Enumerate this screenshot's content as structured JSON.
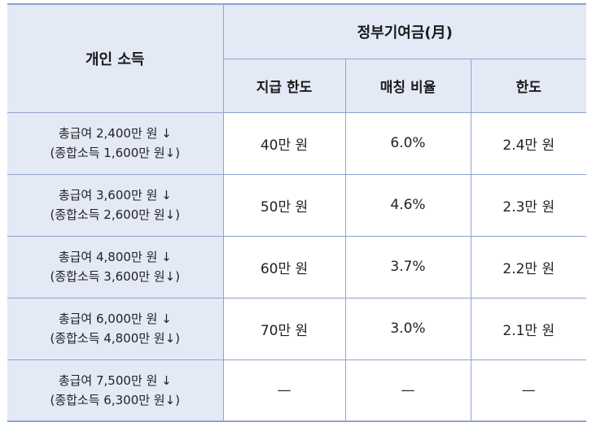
{
  "header": {
    "personal_income": "개인 소득",
    "gov_contribution": "정부기여금(月)",
    "sub": {
      "limit": "지급 한도",
      "matching": "매칭 비율",
      "cap": "한도"
    }
  },
  "rows": [
    {
      "line1": "총급여 2,400만 원 ↓",
      "line2": "(종합소득 1,600만 원↓)",
      "limit": "40만 원",
      "matching": "6.0%",
      "cap": "2.4만 원"
    },
    {
      "line1": "총급여 3,600만 원 ↓",
      "line2": "(종합소득 2,600만 원↓)",
      "limit": "50만 원",
      "matching": "4.6%",
      "cap": "2.3만 원"
    },
    {
      "line1": "총급여 4,800만 원 ↓",
      "line2": "(종합소득 3,600만 원↓)",
      "limit": "60만 원",
      "matching": "3.7%",
      "cap": "2.2만 원"
    },
    {
      "line1": "총급여 6,000만 원 ↓",
      "line2": "(종합소득 4,800만 원↓)",
      "limit": "70만 원",
      "matching": "3.0%",
      "cap": "2.1만 원"
    },
    {
      "line1": "총급여 7,500만 원 ↓",
      "line2": "(종합소득 6,300만 원↓)",
      "limit": "—",
      "matching": "—",
      "cap": "—"
    }
  ]
}
